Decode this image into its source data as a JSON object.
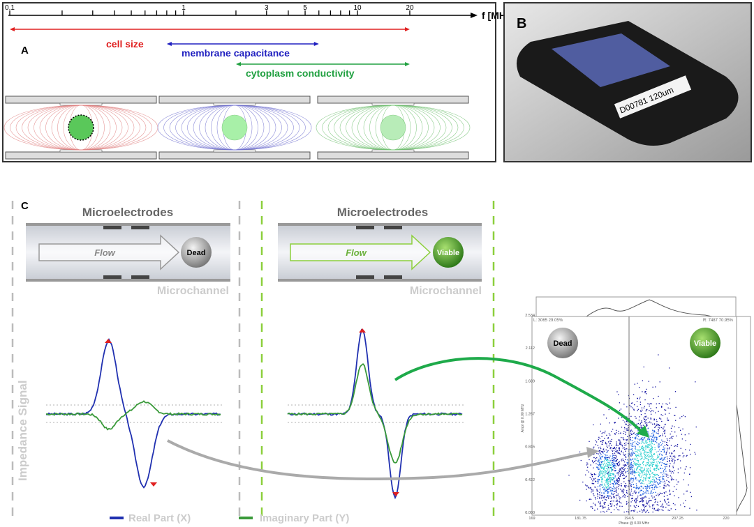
{
  "panel_a": {
    "label": "A",
    "axis_unit": "f [MHz]",
    "tick_labels": [
      "0.1",
      "1",
      "3",
      "5",
      "10",
      "20"
    ],
    "ranges": [
      {
        "name": "cell size",
        "from": 0.1,
        "to": 20,
        "color": "#e02020"
      },
      {
        "name": "membrane capacitance",
        "from": 0.8,
        "to": 6,
        "color": "#2020c0"
      },
      {
        "name": "cytoplasm conductivity",
        "from": 2,
        "to": 20,
        "color": "#20a040"
      }
    ]
  },
  "panel_b": {
    "label": "B",
    "chip_label": "D00781 120um"
  },
  "panel_c": {
    "label": "C",
    "left": {
      "title": "Microelectrodes",
      "flow": "Flow",
      "cell": "Dead",
      "channel": "Microchannel"
    },
    "right": {
      "title": "Microelectrodes",
      "flow": "Flow",
      "cell": "Viable",
      "channel": "Microchannel"
    },
    "y_label": "Impedance Signal",
    "legend": [
      {
        "name": "Real Part (X)",
        "color": "#2030b0"
      },
      {
        "name": "Imaginary Part (Y)",
        "color": "#3a9a3a"
      }
    ],
    "scatter": {
      "left_gate": "L: 3065   29.05%",
      "right_gate": "R: 7487   70.95%",
      "dead_label": "Dead",
      "viable_label": "Viable",
      "x_ticks": [
        "169",
        "181.75",
        "194.5",
        "207.25",
        "220"
      ],
      "y_ticks": [
        "0.000",
        "0.422",
        "0.845",
        "1.267",
        "1.689",
        "2.112",
        "2.534"
      ],
      "xlabel": "Phase @ 0.00 MHz",
      "ylabel": "Ampl @ 0.00 MHz",
      "gate_x": 194.5
    }
  }
}
